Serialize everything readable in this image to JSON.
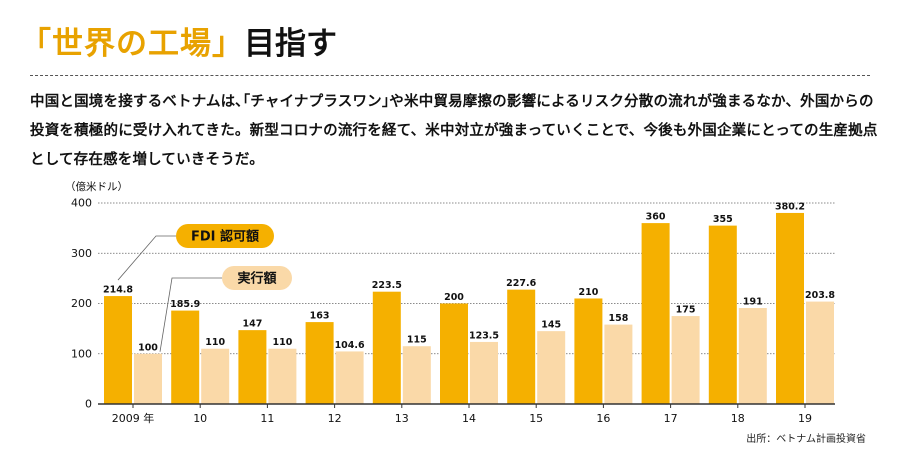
{
  "headline": {
    "accent": "「世界の工場」",
    "rest": "目指す"
  },
  "lead": "中国と国境を接するベトナムは､｢チャイナプラスワン｣や米中貿易摩擦の影響によるリスク分散の流れが強まるなか、外国からの投資を積極的に受け入れてきた。新型コロナの流行を経て、米中対立が強まっていくことで、今後も外国企業にとっての生産拠点として存在感を増していきそうだ。",
  "source": "出所：ベトナム計画投資省",
  "colors": {
    "fdi": "#f5b000",
    "executed": "#fad9a8",
    "grid": "#666666",
    "accent_text": "#e8a200"
  },
  "chart_data": {
    "type": "bar",
    "title": "",
    "ylabel": "（億米ドル）",
    "xlabel": "",
    "ylim": [
      0,
      400
    ],
    "yticks": [
      0,
      100,
      200,
      300,
      400
    ],
    "grid": true,
    "categories": [
      "2009 年",
      "10",
      "11",
      "12",
      "13",
      "14",
      "15",
      "16",
      "17",
      "18",
      "19"
    ],
    "series": [
      {
        "name": "FDI 認可額",
        "values": [
          214.8,
          185.9,
          147,
          163,
          223.5,
          200,
          227.6,
          210,
          360,
          355,
          380.2
        ],
        "labels": [
          "214.8",
          "185.9",
          "147",
          "163",
          "223.5",
          "200",
          "227.6",
          "210",
          "360",
          "355",
          "380.2"
        ]
      },
      {
        "name": "実行額",
        "values": [
          100,
          110,
          110,
          104.6,
          115,
          123.5,
          145,
          158,
          175,
          191,
          203.8
        ],
        "labels": [
          "100",
          "110",
          "110",
          "104.6",
          "115",
          "123.5",
          "145",
          "158",
          "175",
          "191",
          "203.8"
        ]
      }
    ]
  }
}
